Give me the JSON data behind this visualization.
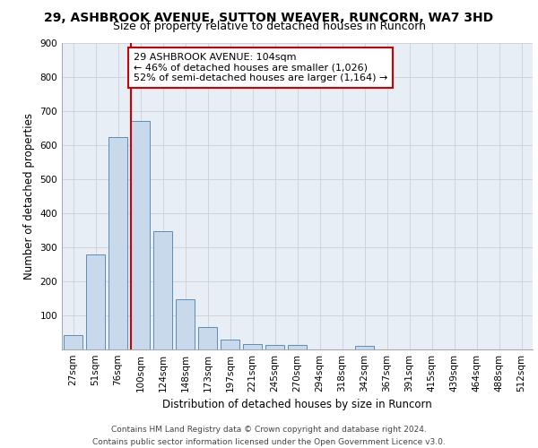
{
  "title_line1": "29, ASHBROOK AVENUE, SUTTON WEAVER, RUNCORN, WA7 3HD",
  "title_line2": "Size of property relative to detached houses in Runcorn",
  "xlabel": "Distribution of detached houses by size in Runcorn",
  "ylabel": "Number of detached properties",
  "bar_labels": [
    "27sqm",
    "51sqm",
    "76sqm",
    "100sqm",
    "124sqm",
    "148sqm",
    "173sqm",
    "197sqm",
    "221sqm",
    "245sqm",
    "270sqm",
    "294sqm",
    "318sqm",
    "342sqm",
    "367sqm",
    "391sqm",
    "415sqm",
    "439sqm",
    "464sqm",
    "488sqm",
    "512sqm"
  ],
  "bar_values": [
    42,
    278,
    622,
    670,
    348,
    148,
    65,
    28,
    15,
    12,
    12,
    0,
    0,
    10,
    0,
    0,
    0,
    0,
    0,
    0,
    0
  ],
  "bar_color": "#c9d9ec",
  "bar_edge_color": "#5b8db8",
  "vline_bin_index": 3,
  "vline_color": "#cc0000",
  "annotation_text": "29 ASHBROOK AVENUE: 104sqm\n← 46% of detached houses are smaller (1,026)\n52% of semi-detached houses are larger (1,164) →",
  "annotation_box_color": "#ffffff",
  "annotation_box_edge_color": "#cc0000",
  "ylim": [
    0,
    900
  ],
  "yticks": [
    0,
    100,
    200,
    300,
    400,
    500,
    600,
    700,
    800,
    900
  ],
  "grid_color": "#d0d0d0",
  "axes_bg_color": "#e8eef5",
  "footnote": "Contains HM Land Registry data © Crown copyright and database right 2024.\nContains public sector information licensed under the Open Government Licence v3.0.",
  "title_fontsize": 10,
  "subtitle_fontsize": 9,
  "axis_label_fontsize": 8.5,
  "tick_fontsize": 7.5,
  "annotation_fontsize": 8,
  "footnote_fontsize": 6.5
}
